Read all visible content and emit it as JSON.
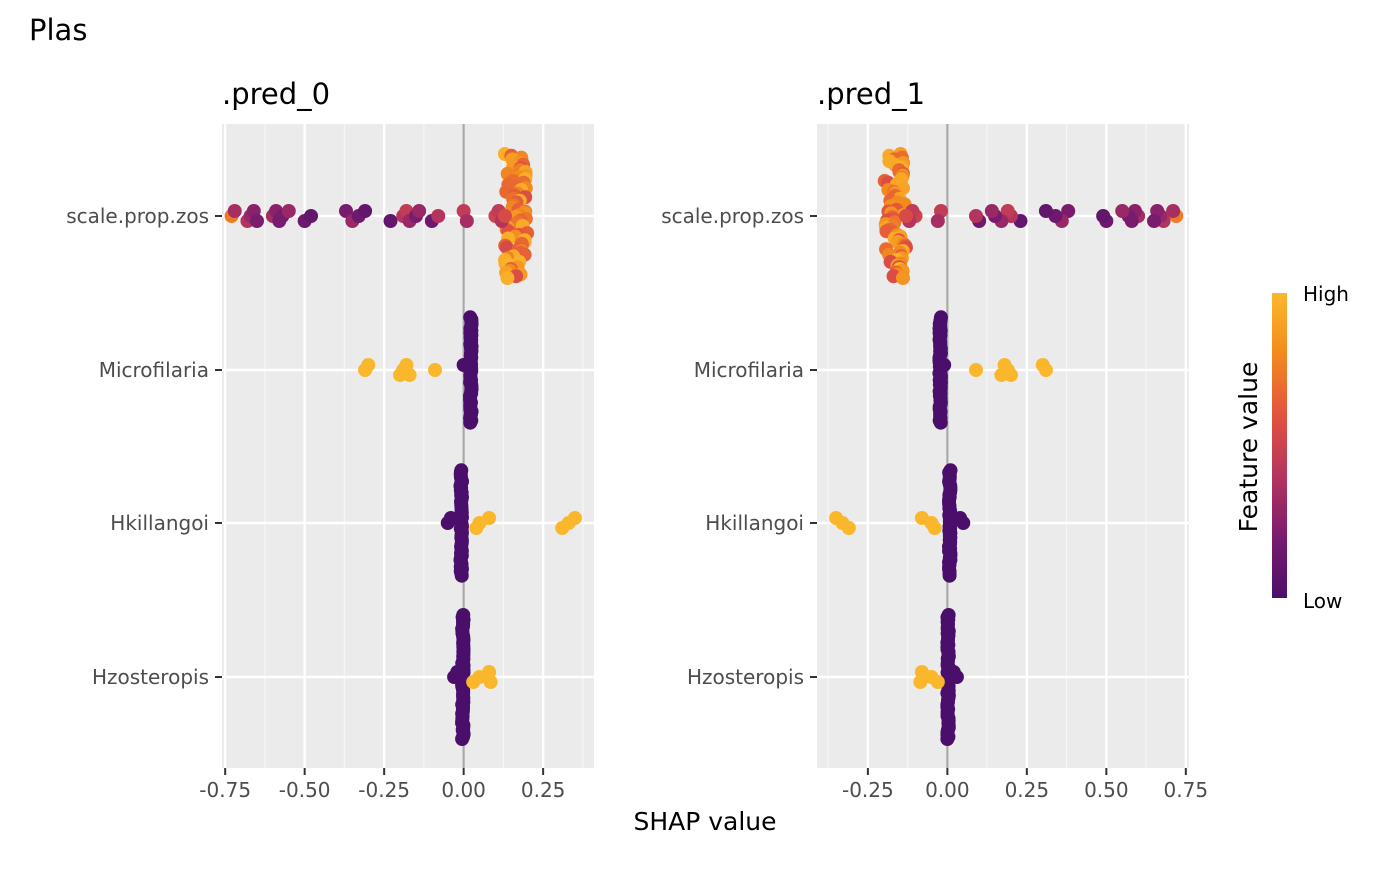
{
  "title": "Plas",
  "chart_data": {
    "type": "scatter",
    "subtype": "shap-beeswarm",
    "xlabel": "SHAP value",
    "ylabel": "",
    "features": [
      "scale.prop.zos",
      "Microfilaria",
      "Hkillangoi",
      "Hzosteropis"
    ],
    "legend": {
      "title": "Feature value",
      "high_label": "High",
      "low_label": "Low",
      "position": "right",
      "colors": [
        "#4a0f6b",
        "#7a1c6d",
        "#b5345f",
        "#e2533f",
        "#f28a1e",
        "#fbb72b"
      ]
    },
    "panels": [
      {
        "title": ".pred_0",
        "xlim": [
          -0.76,
          0.41
        ],
        "xticks": [
          -0.75,
          -0.5,
          -0.25,
          0.0,
          0.25
        ],
        "xtick_labels": [
          "-0.75",
          "-0.50",
          "-0.25",
          "0.00",
          "0.25"
        ],
        "points": {
          "scale.prop.zos": [
            {
              "x": -0.73,
              "v": 0.75
            },
            {
              "x": -0.72,
              "v": 0.35
            },
            {
              "x": -0.68,
              "v": 0.4
            },
            {
              "x": -0.67,
              "v": 0.3
            },
            {
              "x": -0.66,
              "v": 0.25
            },
            {
              "x": -0.65,
              "v": 0.2
            },
            {
              "x": -0.6,
              "v": 0.35
            },
            {
              "x": -0.59,
              "v": 0.25
            },
            {
              "x": -0.58,
              "v": 0.2
            },
            {
              "x": -0.57,
              "v": 0.2
            },
            {
              "x": -0.55,
              "v": 0.3
            },
            {
              "x": -0.5,
              "v": 0.15
            },
            {
              "x": -0.48,
              "v": 0.1
            },
            {
              "x": -0.37,
              "v": 0.2
            },
            {
              "x": -0.35,
              "v": 0.3
            },
            {
              "x": -0.33,
              "v": 0.15
            },
            {
              "x": -0.31,
              "v": 0.1
            },
            {
              "x": -0.23,
              "v": 0.1
            },
            {
              "x": -0.19,
              "v": 0.4
            },
            {
              "x": -0.18,
              "v": 0.45
            },
            {
              "x": -0.17,
              "v": 0.3
            },
            {
              "x": -0.15,
              "v": 0.2
            },
            {
              "x": -0.14,
              "v": 0.3
            },
            {
              "x": -0.1,
              "v": 0.15
            },
            {
              "x": -0.08,
              "v": 0.4
            },
            {
              "x": 0.0,
              "v": 0.45
            },
            {
              "x": 0.01,
              "v": 0.35
            },
            {
              "x": 0.1,
              "v": 0.5
            },
            {
              "x": 0.11,
              "v": 0.45
            },
            {
              "x": 0.12,
              "v": 0.4
            },
            {
              "x": 0.13,
              "v": 0.55
            }
          ],
          "dense_cluster": {
            "x_range": [
              0.13,
              0.2
            ],
            "count": 70,
            "v_range": [
              0.55,
              1.0
            ],
            "max_spread": 1.0
          }
        },
        "feature_points": {
          "Microfilaria": {
            "scatter": [
              {
                "x": -0.31,
                "v": 1.0
              },
              {
                "x": -0.3,
                "v": 1.0
              },
              {
                "x": -0.2,
                "v": 1.0
              },
              {
                "x": -0.19,
                "v": 1.0
              },
              {
                "x": -0.18,
                "v": 1.0
              },
              {
                "x": -0.17,
                "v": 1.0
              },
              {
                "x": -0.09,
                "v": 1.0
              },
              {
                "x": 0.0,
                "v": 0.0
              }
            ],
            "dense_cluster": {
              "x_range": [
                0.02,
                0.025
              ],
              "count": 48,
              "v_range": [
                0.0,
                0.0
              ],
              "max_spread": 0.85
            }
          },
          "Hkillangoi": {
            "scatter": [
              {
                "x": -0.05,
                "v": 0.0
              },
              {
                "x": -0.04,
                "v": 0.0
              },
              {
                "x": 0.04,
                "v": 1.0
              },
              {
                "x": 0.05,
                "v": 1.0
              },
              {
                "x": 0.08,
                "v": 1.0
              },
              {
                "x": 0.31,
                "v": 1.0
              },
              {
                "x": 0.33,
                "v": 1.0
              },
              {
                "x": 0.35,
                "v": 1.0
              }
            ],
            "dense_cluster": {
              "x_range": [
                -0.01,
                -0.005
              ],
              "count": 48,
              "v_range": [
                0.0,
                0.0
              ],
              "max_spread": 0.85
            }
          },
          "Hzosteropis": {
            "scatter": [
              {
                "x": -0.03,
                "v": 0.0
              },
              {
                "x": -0.02,
                "v": 0.0
              },
              {
                "x": 0.03,
                "v": 1.0
              },
              {
                "x": 0.05,
                "v": 1.0
              },
              {
                "x": 0.08,
                "v": 1.0
              },
              {
                "x": 0.085,
                "v": 1.0
              }
            ],
            "dense_cluster": {
              "x_range": [
                -0.005,
                0.0
              ],
              "count": 55,
              "v_range": [
                0.0,
                0.0
              ],
              "max_spread": 1.0
            }
          }
        }
      },
      {
        "title": ".pred_1",
        "xlim": [
          -0.41,
          0.76
        ],
        "xticks": [
          -0.25,
          0.0,
          0.25,
          0.5,
          0.75
        ],
        "xtick_labels": [
          "-0.25",
          "0.00",
          "0.25",
          "0.50",
          "0.75"
        ],
        "points": {
          "scale.prop.zos": [
            {
              "x": 0.72,
              "v": 0.75
            },
            {
              "x": 0.71,
              "v": 0.35
            },
            {
              "x": 0.68,
              "v": 0.4
            },
            {
              "x": 0.67,
              "v": 0.3
            },
            {
              "x": 0.66,
              "v": 0.25
            },
            {
              "x": 0.65,
              "v": 0.2
            },
            {
              "x": 0.6,
              "v": 0.35
            },
            {
              "x": 0.59,
              "v": 0.25
            },
            {
              "x": 0.58,
              "v": 0.2
            },
            {
              "x": 0.57,
              "v": 0.2
            },
            {
              "x": 0.55,
              "v": 0.3
            },
            {
              "x": 0.5,
              "v": 0.15
            },
            {
              "x": 0.49,
              "v": 0.1
            },
            {
              "x": 0.38,
              "v": 0.2
            },
            {
              "x": 0.36,
              "v": 0.3
            },
            {
              "x": 0.34,
              "v": 0.15
            },
            {
              "x": 0.31,
              "v": 0.1
            },
            {
              "x": 0.23,
              "v": 0.1
            },
            {
              "x": 0.2,
              "v": 0.4
            },
            {
              "x": 0.19,
              "v": 0.45
            },
            {
              "x": 0.17,
              "v": 0.3
            },
            {
              "x": 0.15,
              "v": 0.2
            },
            {
              "x": 0.14,
              "v": 0.3
            },
            {
              "x": 0.1,
              "v": 0.15
            },
            {
              "x": 0.09,
              "v": 0.4
            },
            {
              "x": -0.02,
              "v": 0.45
            },
            {
              "x": -0.03,
              "v": 0.35
            },
            {
              "x": -0.1,
              "v": 0.5
            },
            {
              "x": -0.11,
              "v": 0.45
            },
            {
              "x": -0.12,
              "v": 0.4
            },
            {
              "x": -0.13,
              "v": 0.55
            }
          ],
          "dense_cluster": {
            "x_range": [
              -0.2,
              -0.13
            ],
            "count": 70,
            "v_range": [
              0.55,
              1.0
            ],
            "max_spread": 1.0
          }
        },
        "feature_points": {
          "Microfilaria": {
            "scatter": [
              {
                "x": 0.31,
                "v": 1.0
              },
              {
                "x": 0.3,
                "v": 1.0
              },
              {
                "x": 0.2,
                "v": 1.0
              },
              {
                "x": 0.19,
                "v": 1.0
              },
              {
                "x": 0.18,
                "v": 1.0
              },
              {
                "x": 0.17,
                "v": 1.0
              },
              {
                "x": 0.09,
                "v": 1.0
              },
              {
                "x": -0.01,
                "v": 0.0
              }
            ],
            "dense_cluster": {
              "x_range": [
                -0.025,
                -0.02
              ],
              "count": 48,
              "v_range": [
                0.0,
                0.0
              ],
              "max_spread": 0.85
            }
          },
          "Hkillangoi": {
            "scatter": [
              {
                "x": 0.05,
                "v": 0.0
              },
              {
                "x": 0.04,
                "v": 0.0
              },
              {
                "x": -0.04,
                "v": 1.0
              },
              {
                "x": -0.05,
                "v": 1.0
              },
              {
                "x": -0.08,
                "v": 1.0
              },
              {
                "x": -0.31,
                "v": 1.0
              },
              {
                "x": -0.33,
                "v": 1.0
              },
              {
                "x": -0.35,
                "v": 1.0
              }
            ],
            "dense_cluster": {
              "x_range": [
                0.005,
                0.01
              ],
              "count": 48,
              "v_range": [
                0.0,
                0.0
              ],
              "max_spread": 0.85
            }
          },
          "Hzosteropis": {
            "scatter": [
              {
                "x": 0.03,
                "v": 0.0
              },
              {
                "x": 0.02,
                "v": 0.0
              },
              {
                "x": -0.03,
                "v": 1.0
              },
              {
                "x": -0.05,
                "v": 1.0
              },
              {
                "x": -0.08,
                "v": 1.0
              },
              {
                "x": -0.085,
                "v": 1.0
              }
            ],
            "dense_cluster": {
              "x_range": [
                0.0,
                0.005
              ],
              "count": 55,
              "v_range": [
                0.0,
                0.0
              ],
              "max_spread": 1.0
            }
          }
        }
      }
    ]
  }
}
